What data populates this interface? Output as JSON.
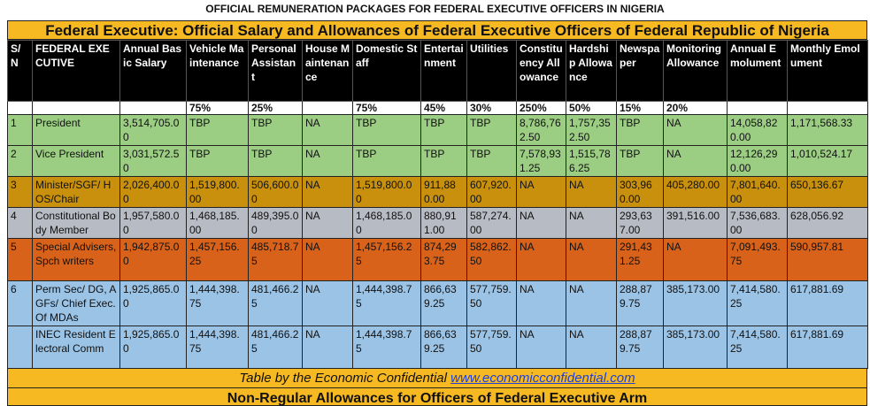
{
  "page_title": "OFFICIAL REMUNERATION PACKAGES FOR FEDERAL EXECUTIVE OFFICERS IN NIGERIA",
  "banner": "Federal Executive: Official Salary and Allowances of Federal Executive Officers of Federal Republic of Nigeria",
  "headers": [
    "S/ N",
    "FEDERAL EXECUTIVE",
    "Annual Basic Salary",
    "Vehicle Maintenance",
    "Personal Assistant",
    "House Maintenance",
    "Domestic Staff",
    "Entertainment",
    "Utilities",
    "Constituency Allowance",
    "Hardship Allowance",
    "Newspaper",
    "Monitoring Allowance",
    "Annual Emolument",
    "Monthly Emolument"
  ],
  "percentages": [
    "",
    "",
    "",
    "75%",
    "25%",
    "",
    "75%",
    "45%",
    "30%",
    "250%",
    "50%",
    "15%",
    "20%",
    "",
    ""
  ],
  "rows": [
    {
      "style": "green",
      "cells": [
        "1",
        "President",
        "3,514,705.00",
        "TBP",
        "TBP",
        "NA",
        "TBP",
        "TBP",
        "TBP",
        "8,786,762.50",
        "1,757,352.50",
        "TBP",
        "NA",
        "14,058,820.00",
        "1,171,568.33"
      ]
    },
    {
      "style": "green",
      "cells": [
        "2",
        "Vice President",
        "3,031,572.50",
        "TBP",
        "TBP",
        "NA",
        "TBP",
        "TBP",
        "TBP",
        "7,578,931.25",
        "1,515,786.25",
        "TBP",
        "NA",
        "12,126,290.00",
        "1,010,524.17"
      ]
    },
    {
      "style": "gold",
      "cells": [
        "3",
        "Minister/SGF/ HOS/Chair",
        "2,026,400.00",
        "1,519,800.00",
        "506,600.00",
        "NA",
        "1,519,800.00",
        "911,880.00",
        "607,920.00",
        "NA",
        "NA",
        "303,960.00",
        "405,280.00",
        "7,801,640.00",
        "650,136.67"
      ]
    },
    {
      "style": "grey",
      "cells": [
        "4",
        "Constitutional Body Member",
        "1,957,580.00",
        "1,468,185.00",
        "489,395.00",
        "NA",
        "1,468,185.00",
        "880,911.00",
        "587,274.00",
        "NA",
        "NA",
        "293,637.00",
        "391,516.00",
        "7,536,683.00",
        "628,056.92"
      ]
    },
    {
      "style": "orange",
      "cells": [
        "5",
        "Special Advisers, Spch writers",
        "1,942,875.00",
        "1,457,156.25",
        "485,718.75",
        "NA",
        "1,457,156.25",
        "874,293.75",
        "582,862.50",
        "NA",
        "NA",
        "291,431.25",
        "NA",
        "7,091,493.75",
        "590,957.81"
      ]
    },
    {
      "style": "blue",
      "cells": [
        "6",
        "Perm Sec/ DG, AGFs/ Chief Exec. Of MDAs",
        "1,925,865.00",
        "1,444,398.75",
        "481,466.25",
        "NA",
        "1,444,398.75",
        "866,639.25",
        "577,759.50",
        "NA",
        "NA",
        "288,879.75",
        "385,173.00",
        "7,414,580.25",
        "617,881.69"
      ]
    },
    {
      "style": "blue",
      "cells": [
        "",
        "INEC Resident Electoral Comm",
        "1,925,865.00",
        "1,444,398.75",
        "481,466.25",
        "NA",
        "1,444,398.75",
        "866,639.25",
        "577,759.50",
        "NA",
        "NA",
        "288,879.75",
        "385,173.00",
        "7,414,580.25",
        "617,881.69"
      ]
    }
  ],
  "footer": {
    "text": "Table by the Economic Confidential ",
    "link": "www.economicconfidential.com"
  },
  "subheading": "Non-Regular Allowances for Officers of Federal Executive Arm",
  "colors": {
    "banner": "#f7b921",
    "green": "#9bcd82",
    "gold": "#c8900c",
    "grey": "#b7bcc4",
    "orange": "#d9621a",
    "blue": "#9ac3e6",
    "link": "#1d3fd6"
  }
}
